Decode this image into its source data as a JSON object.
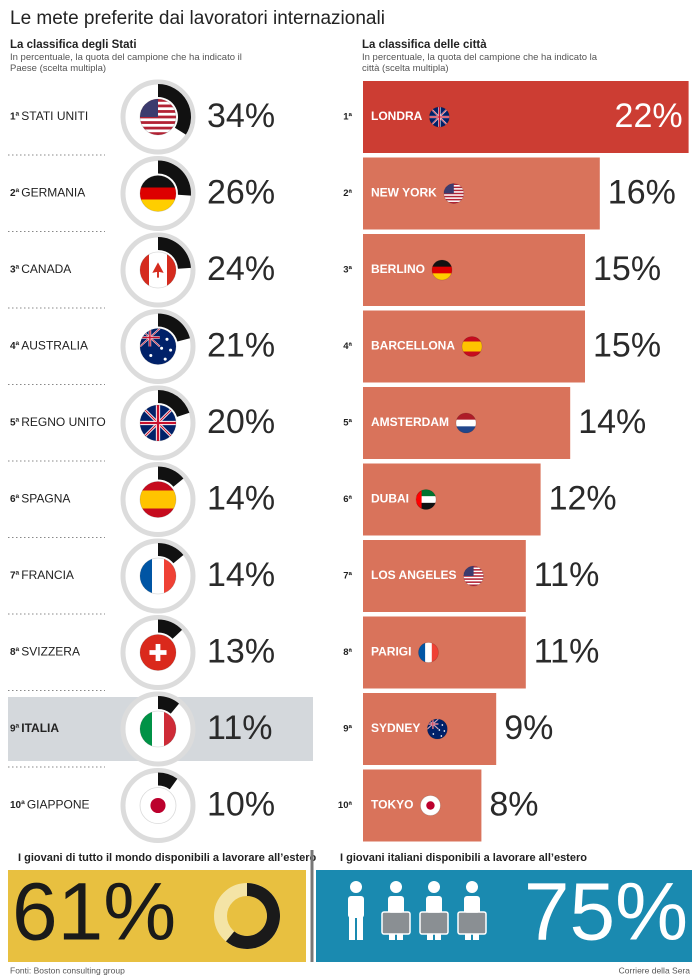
{
  "title": "Le mete preferite dai lavoratori internazionali",
  "chart_data": [
    {
      "type": "ring",
      "title": "La classifica degli Stati",
      "subtitle": "In percentuale, la quota del campione che ha indicato il Paese (scelta multipla)",
      "ranks": [
        "1ª",
        "2ª",
        "3ª",
        "4ª",
        "5ª",
        "6ª",
        "7ª",
        "8ª",
        "9ª",
        "10ª"
      ],
      "categories": [
        "STATI UNITI",
        "GERMANIA",
        "CANADA",
        "AUSTRALIA",
        "REGNO UNITO",
        "SPAGNA",
        "FRANCIA",
        "SVIZZERA",
        "ITALIA",
        "GIAPPONE"
      ],
      "values": [
        34,
        26,
        24,
        21,
        20,
        14,
        14,
        13,
        11,
        10
      ],
      "value_labels": [
        "34%",
        "26%",
        "24%",
        "21%",
        "20%",
        "14%",
        "14%",
        "13%",
        "11%",
        "10%"
      ],
      "color": "#111111",
      "highlight": "ITALIA",
      "highlight_color": "#d4d8dc"
    },
    {
      "type": "bar",
      "title": "La classifica delle città",
      "subtitle": "In percentuale, la quota del campione che ha indicato la città (scelta multipla)",
      "ranks": [
        "1ª",
        "2ª",
        "3ª",
        "4ª",
        "5ª",
        "6ª",
        "7ª",
        "8ª",
        "9ª",
        "10ª"
      ],
      "categories": [
        "LONDRA",
        "NEW YORK",
        "BERLINO",
        "BARCELLONA",
        "AMSTERDAM",
        "DUBAI",
        "LOS ANGELES",
        "PARIGI",
        "SYDNEY",
        "TOKYO"
      ],
      "values": [
        22,
        16,
        15,
        15,
        14,
        12,
        11,
        11,
        9,
        8
      ],
      "value_labels": [
        "22%",
        "16%",
        "15%",
        "15%",
        "14%",
        "12%",
        "11%",
        "11%",
        "9%",
        "8%"
      ],
      "colors": [
        "#cc3d33",
        "#d9735b",
        "#d9735b",
        "#d9735b",
        "#d9735b",
        "#d9735b",
        "#d9735b",
        "#d9735b",
        "#d9735b",
        "#d9735b"
      ]
    },
    {
      "type": "donut",
      "title": "I giovani di tutto il mondo disponibili a lavorare all’estero",
      "values": [
        61
      ],
      "value_labels": [
        "61%"
      ],
      "color": "#1a1a1a",
      "background": "#e8c040"
    },
    {
      "type": "icons",
      "title": "I giovani italiani disponibili a lavorare all’estero",
      "values": [
        75
      ],
      "value_labels": [
        "75%"
      ],
      "color": "#ffffff",
      "background": "#1a8ab0"
    }
  ],
  "source": "Fonti: Boston consulting group",
  "credit": "Corriere della Sera"
}
